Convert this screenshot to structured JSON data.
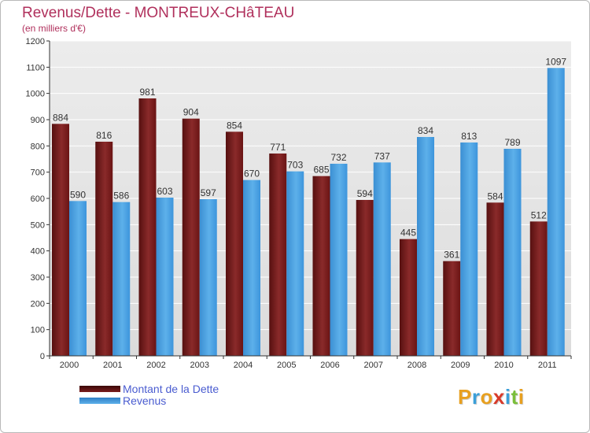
{
  "title": "Revenus/Dette - MONTREUX-CHâTEAU",
  "subtitle": "(en milliers d'€)",
  "legend": [
    {
      "label": "Montant de la Dette",
      "color": "#6b0f0f"
    },
    {
      "label": "Revenus",
      "color": "#3d95dc"
    }
  ],
  "logo": {
    "letters": [
      "P",
      "r",
      "o",
      "x",
      "i",
      "t",
      "i"
    ],
    "colors": [
      "#e8a020",
      "#3b9fd8",
      "#e8a020",
      "#d83a2a",
      "#3b9fd8",
      "#7bbf3a",
      "#e8a020"
    ]
  },
  "chart_data": {
    "type": "bar",
    "categories": [
      "2000",
      "2001",
      "2002",
      "2003",
      "2004",
      "2005",
      "2006",
      "2007",
      "2008",
      "2009",
      "2010",
      "2011"
    ],
    "series": [
      {
        "name": "Montant de la Dette",
        "color": "#7a1c1c",
        "values": [
          884,
          816,
          981,
          904,
          854,
          771,
          685,
          594,
          445,
          361,
          584,
          512
        ]
      },
      {
        "name": "Revenus",
        "color": "#4aa3e4",
        "values": [
          590,
          586,
          603,
          597,
          670,
          703,
          732,
          737,
          834,
          813,
          789,
          1097
        ]
      }
    ],
    "yticks": [
      0,
      100,
      200,
      300,
      400,
      500,
      600,
      700,
      800,
      900,
      1000,
      1100,
      1200
    ],
    "ylim": [
      0,
      1200
    ],
    "grid": true,
    "legend_position": "bottom-left"
  }
}
